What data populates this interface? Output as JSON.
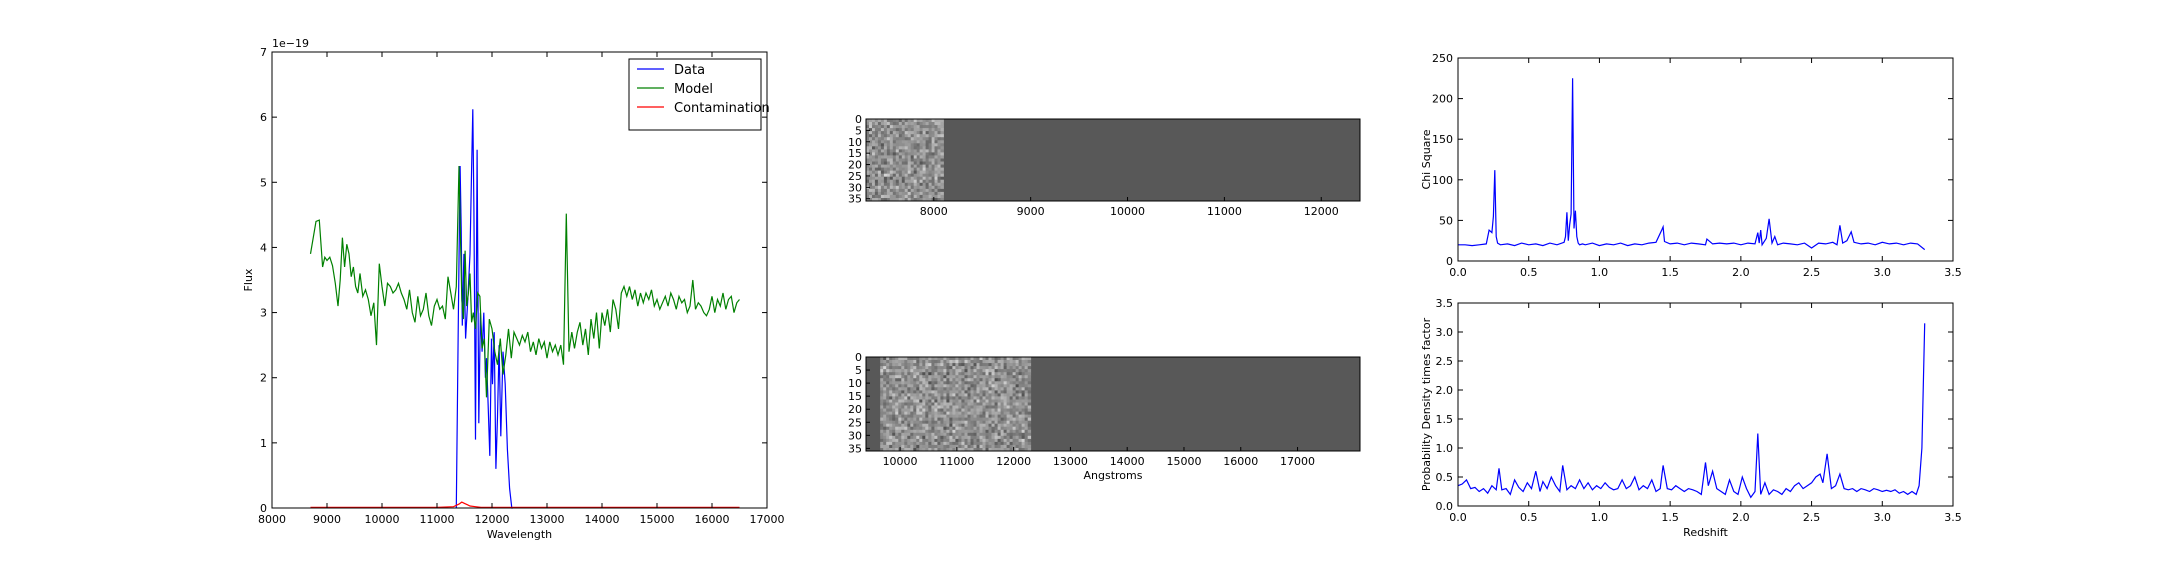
{
  "chart_data": [
    {
      "id": "spectrum",
      "type": "line",
      "xlabel": "Wavelength",
      "ylabel": "Flux",
      "offset_text": "1e−19",
      "xlim": [
        8000,
        17000
      ],
      "ylim": [
        0,
        7
      ],
      "xticks": [
        "8000",
        "9000",
        "10000",
        "11000",
        "12000",
        "13000",
        "14000",
        "15000",
        "16000",
        "17000"
      ],
      "yticks": [
        "0",
        "1",
        "2",
        "3",
        "4",
        "5",
        "6",
        "7"
      ],
      "legend_position": "top-right",
      "series": [
        {
          "name": "Data",
          "color": "#0000ff",
          "x": [
            11350,
            11390,
            11420,
            11440,
            11460,
            11490,
            11520,
            11560,
            11600,
            11630,
            11650,
            11670,
            11700,
            11730,
            11760,
            11790,
            11820,
            11850,
            11880,
            11900,
            11930,
            11960,
            11990,
            12010,
            12040,
            12070,
            12100,
            12130,
            12160,
            12200,
            12240,
            12280,
            12320,
            12360,
            12380
          ],
          "y": [
            0,
            3.0,
            5.25,
            4.3,
            2.8,
            3.9,
            2.6,
            3.2,
            3.9,
            5.2,
            6.12,
            4.6,
            1.05,
            5.5,
            1.3,
            3.0,
            2.4,
            3.0,
            2.0,
            2.3,
            1.6,
            0.8,
            2.6,
            1.9,
            2.7,
            0.6,
            1.4,
            2.5,
            1.1,
            2.4,
            1.9,
            0.9,
            0.3,
            0,
            0
          ]
        },
        {
          "name": "Model",
          "color": "#008000",
          "x": [
            8700,
            8800,
            8860,
            8920,
            8960,
            9000,
            9050,
            9100,
            9150,
            9200,
            9240,
            9280,
            9320,
            9360,
            9400,
            9440,
            9480,
            9520,
            9560,
            9600,
            9650,
            9700,
            9750,
            9800,
            9850,
            9900,
            9950,
            10000,
            10050,
            10100,
            10150,
            10200,
            10250,
            10300,
            10350,
            10400,
            10450,
            10500,
            10550,
            10600,
            10650,
            10700,
            10750,
            10800,
            10850,
            10900,
            10950,
            11000,
            11050,
            11100,
            11150,
            11200,
            11250,
            11300,
            11350,
            11400,
            11450,
            11480,
            11510,
            11540,
            11570,
            11600,
            11630,
            11660,
            11700,
            11740,
            11780,
            11820,
            11860,
            11900,
            11950,
            12000,
            12050,
            12100,
            12150,
            12200,
            12250,
            12300,
            12350,
            12400,
            12450,
            12500,
            12550,
            12600,
            12650,
            12700,
            12750,
            12800,
            12850,
            12900,
            12950,
            13000,
            13050,
            13100,
            13150,
            13200,
            13250,
            13300,
            13350,
            13400,
            13450,
            13500,
            13550,
            13600,
            13650,
            13700,
            13750,
            13800,
            13850,
            13900,
            13950,
            14000,
            14050,
            14100,
            14150,
            14200,
            14250,
            14300,
            14350,
            14400,
            14450,
            14500,
            14550,
            14600,
            14650,
            14700,
            14750,
            14800,
            14850,
            14900,
            14950,
            15000,
            15050,
            15100,
            15150,
            15200,
            15250,
            15300,
            15350,
            15400,
            15450,
            15500,
            15550,
            15600,
            15650,
            15700,
            15750,
            15800,
            15850,
            15900,
            15950,
            16000,
            16050,
            16100,
            16150,
            16200,
            16250,
            16300,
            16350,
            16400,
            16450,
            16500
          ],
          "y": [
            3.9,
            4.4,
            4.42,
            3.7,
            3.85,
            3.8,
            3.85,
            3.72,
            3.45,
            3.1,
            3.5,
            4.15,
            3.7,
            4.05,
            3.9,
            3.55,
            3.7,
            3.4,
            3.3,
            3.6,
            3.25,
            3.35,
            3.2,
            2.95,
            3.15,
            2.5,
            3.75,
            3.4,
            3.1,
            3.45,
            3.4,
            3.3,
            3.35,
            3.45,
            3.3,
            3.2,
            3.05,
            3.35,
            3.0,
            2.85,
            3.25,
            2.95,
            3.05,
            3.3,
            2.95,
            2.8,
            3.1,
            3.2,
            3.05,
            3.1,
            2.9,
            3.55,
            3.3,
            3.05,
            3.4,
            5.25,
            3.2,
            2.9,
            3.95,
            3.1,
            3.3,
            3.6,
            2.85,
            3.0,
            2.75,
            3.3,
            3.25,
            2.45,
            2.6,
            1.7,
            2.9,
            2.75,
            2.4,
            2.2,
            2.6,
            2.05,
            2.35,
            2.75,
            2.3,
            2.7,
            2.6,
            2.5,
            2.65,
            2.55,
            2.7,
            2.4,
            2.55,
            2.35,
            2.6,
            2.45,
            2.55,
            2.3,
            2.55,
            2.4,
            2.5,
            2.35,
            2.5,
            2.2,
            4.52,
            2.4,
            2.7,
            2.45,
            2.7,
            2.85,
            2.5,
            2.75,
            2.35,
            2.9,
            2.6,
            3.0,
            2.45,
            3.0,
            2.8,
            3.05,
            2.7,
            3.2,
            3.05,
            2.75,
            3.3,
            3.4,
            3.25,
            3.4,
            3.2,
            3.35,
            3.1,
            3.3,
            3.15,
            3.3,
            3.2,
            3.35,
            3.1,
            3.2,
            3.05,
            3.15,
            3.25,
            3.1,
            3.3,
            3.2,
            3.05,
            3.25,
            3.15,
            3.2,
            3.0,
            3.1,
            3.5,
            3.05,
            3.15,
            3.1,
            3.0,
            2.95,
            3.05,
            3.25,
            3.0,
            3.2,
            3.1,
            3.3,
            3.05,
            3.2,
            3.25,
            3.0,
            3.15,
            3.2
          ],
          "note_ignore": ""
        },
        {
          "name": "Contamination",
          "color": "#ff0000",
          "x": [
            8700,
            9000,
            10000,
            11000,
            11300,
            11400,
            11450,
            11500,
            11550,
            11600,
            11700,
            11800,
            12000,
            13000,
            14000,
            15000,
            16000,
            16500
          ],
          "y": [
            0.01,
            0.01,
            0.01,
            0.01,
            0.02,
            0.06,
            0.09,
            0.07,
            0.05,
            0.03,
            0.02,
            0.01,
            0.01,
            0.01,
            0.01,
            0.01,
            0.01,
            0.01
          ]
        }
      ]
    },
    {
      "id": "image1",
      "type": "heatmap",
      "xlabel": "",
      "xticks": [
        "8000",
        "9000",
        "10000",
        "11000",
        "12000"
      ],
      "xtick_values": [
        8000,
        9000,
        10000,
        11000,
        12000
      ],
      "xlim": [
        7300,
        12400
      ],
      "yticks": [
        "0",
        "5",
        "10",
        "15",
        "20",
        "25",
        "30",
        "35"
      ],
      "ylim": [
        0,
        36
      ],
      "data_x_range": [
        7300,
        8100
      ],
      "background_color": "#585858"
    },
    {
      "id": "image2",
      "type": "heatmap",
      "xlabel": "Angstroms",
      "xticks": [
        "10000",
        "11000",
        "12000",
        "13000",
        "14000",
        "15000",
        "16000",
        "17000"
      ],
      "xtick_values": [
        10000,
        11000,
        12000,
        13000,
        14000,
        15000,
        16000,
        17000
      ],
      "xlim": [
        9400,
        18100
      ],
      "yticks": [
        "0",
        "5",
        "10",
        "15",
        "20",
        "25",
        "30",
        "35"
      ],
      "ylim": [
        0,
        36
      ],
      "data_x_range": [
        9650,
        12300
      ],
      "background_color": "#585858"
    },
    {
      "id": "chisq",
      "type": "line",
      "xlabel": "",
      "ylabel": "Chi Square",
      "xlim": [
        0,
        3.5
      ],
      "ylim": [
        0,
        250
      ],
      "xticks": [
        "0.0",
        "0.5",
        "1.0",
        "1.5",
        "2.0",
        "2.5",
        "3.0",
        "3.5"
      ],
      "yticks": [
        "0",
        "50",
        "100",
        "150",
        "200",
        "250"
      ],
      "series": [
        {
          "name": "",
          "color": "#0000ff",
          "x": [
            0.0,
            0.05,
            0.1,
            0.15,
            0.2,
            0.22,
            0.24,
            0.25,
            0.26,
            0.27,
            0.28,
            0.3,
            0.35,
            0.4,
            0.45,
            0.5,
            0.55,
            0.6,
            0.65,
            0.7,
            0.75,
            0.76,
            0.77,
            0.78,
            0.79,
            0.8,
            0.81,
            0.82,
            0.83,
            0.84,
            0.85,
            0.86,
            0.88,
            0.9,
            0.95,
            1.0,
            1.05,
            1.1,
            1.15,
            1.2,
            1.25,
            1.3,
            1.35,
            1.4,
            1.44,
            1.45,
            1.46,
            1.5,
            1.55,
            1.6,
            1.65,
            1.7,
            1.75,
            1.76,
            1.8,
            1.85,
            1.9,
            1.95,
            2.0,
            2.05,
            2.1,
            2.12,
            2.13,
            2.14,
            2.15,
            2.18,
            2.2,
            2.22,
            2.24,
            2.26,
            2.3,
            2.35,
            2.4,
            2.45,
            2.5,
            2.55,
            2.6,
            2.65,
            2.68,
            2.7,
            2.72,
            2.75,
            2.78,
            2.8,
            2.85,
            2.9,
            2.95,
            3.0,
            3.05,
            3.1,
            3.15,
            3.2,
            3.25,
            3.3
          ],
          "y": [
            20,
            20,
            19,
            20,
            21,
            38,
            35,
            55,
            112,
            30,
            22,
            20,
            21,
            19,
            22,
            20,
            21,
            19,
            22,
            20,
            23,
            30,
            60,
            25,
            45,
            58,
            225,
            40,
            62,
            30,
            22,
            20,
            21,
            20,
            22,
            19,
            21,
            20,
            22,
            19,
            21,
            20,
            22,
            23,
            38,
            42,
            24,
            21,
            22,
            20,
            22,
            21,
            20,
            27,
            21,
            22,
            21,
            22,
            20,
            22,
            21,
            35,
            22,
            38,
            20,
            28,
            52,
            22,
            30,
            20,
            22,
            21,
            20,
            22,
            16,
            22,
            21,
            23,
            20,
            44,
            22,
            25,
            36,
            23,
            21,
            22,
            20,
            23,
            21,
            22,
            20,
            22,
            21,
            14
          ]
        }
      ]
    },
    {
      "id": "pdf",
      "type": "line",
      "xlabel": "Redshift",
      "ylabel": "Probability Density times factor",
      "xlim": [
        0,
        3.5
      ],
      "ylim": [
        0,
        3.5
      ],
      "xticks": [
        "0.0",
        "0.5",
        "1.0",
        "1.5",
        "2.0",
        "2.5",
        "3.0",
        "3.5"
      ],
      "yticks": [
        "0.0",
        "0.5",
        "1.0",
        "1.5",
        "2.0",
        "2.5",
        "3.0",
        "3.5"
      ],
      "series": [
        {
          "name": "",
          "color": "#0000ff",
          "x": [
            0.0,
            0.03,
            0.06,
            0.09,
            0.12,
            0.15,
            0.18,
            0.21,
            0.24,
            0.27,
            0.29,
            0.31,
            0.34,
            0.37,
            0.4,
            0.43,
            0.46,
            0.49,
            0.52,
            0.55,
            0.58,
            0.6,
            0.63,
            0.66,
            0.69,
            0.72,
            0.74,
            0.77,
            0.8,
            0.83,
            0.86,
            0.89,
            0.92,
            0.95,
            0.98,
            1.01,
            1.04,
            1.07,
            1.1,
            1.13,
            1.16,
            1.19,
            1.22,
            1.25,
            1.28,
            1.31,
            1.34,
            1.37,
            1.4,
            1.43,
            1.45,
            1.48,
            1.51,
            1.54,
            1.57,
            1.6,
            1.63,
            1.66,
            1.69,
            1.72,
            1.75,
            1.77,
            1.8,
            1.83,
            1.86,
            1.89,
            1.92,
            1.95,
            1.98,
            2.01,
            2.04,
            2.07,
            2.1,
            2.12,
            2.14,
            2.17,
            2.2,
            2.23,
            2.26,
            2.29,
            2.32,
            2.35,
            2.38,
            2.41,
            2.44,
            2.47,
            2.5,
            2.53,
            2.56,
            2.58,
            2.61,
            2.64,
            2.67,
            2.7,
            2.73,
            2.76,
            2.79,
            2.82,
            2.85,
            2.88,
            2.91,
            2.94,
            2.97,
            3.0,
            3.03,
            3.06,
            3.09,
            3.12,
            3.15,
            3.18,
            3.21,
            3.24,
            3.26,
            3.28,
            3.3
          ],
          "y": [
            0.35,
            0.38,
            0.45,
            0.3,
            0.32,
            0.25,
            0.3,
            0.22,
            0.35,
            0.28,
            0.65,
            0.28,
            0.3,
            0.2,
            0.45,
            0.32,
            0.25,
            0.4,
            0.3,
            0.6,
            0.25,
            0.42,
            0.3,
            0.5,
            0.35,
            0.25,
            0.7,
            0.28,
            0.35,
            0.3,
            0.45,
            0.3,
            0.4,
            0.28,
            0.35,
            0.3,
            0.4,
            0.32,
            0.28,
            0.3,
            0.45,
            0.3,
            0.35,
            0.5,
            0.28,
            0.35,
            0.3,
            0.45,
            0.25,
            0.3,
            0.7,
            0.3,
            0.28,
            0.35,
            0.3,
            0.25,
            0.3,
            0.28,
            0.25,
            0.2,
            0.75,
            0.35,
            0.6,
            0.3,
            0.25,
            0.2,
            0.45,
            0.25,
            0.2,
            0.5,
            0.3,
            0.15,
            0.25,
            1.25,
            0.2,
            0.4,
            0.2,
            0.28,
            0.25,
            0.2,
            0.3,
            0.25,
            0.35,
            0.4,
            0.3,
            0.35,
            0.4,
            0.5,
            0.55,
            0.4,
            0.9,
            0.3,
            0.35,
            0.55,
            0.3,
            0.28,
            0.3,
            0.25,
            0.3,
            0.28,
            0.25,
            0.3,
            0.28,
            0.25,
            0.27,
            0.25,
            0.28,
            0.22,
            0.25,
            0.2,
            0.25,
            0.2,
            0.35,
            1.0,
            3.15
          ]
        }
      ]
    }
  ]
}
